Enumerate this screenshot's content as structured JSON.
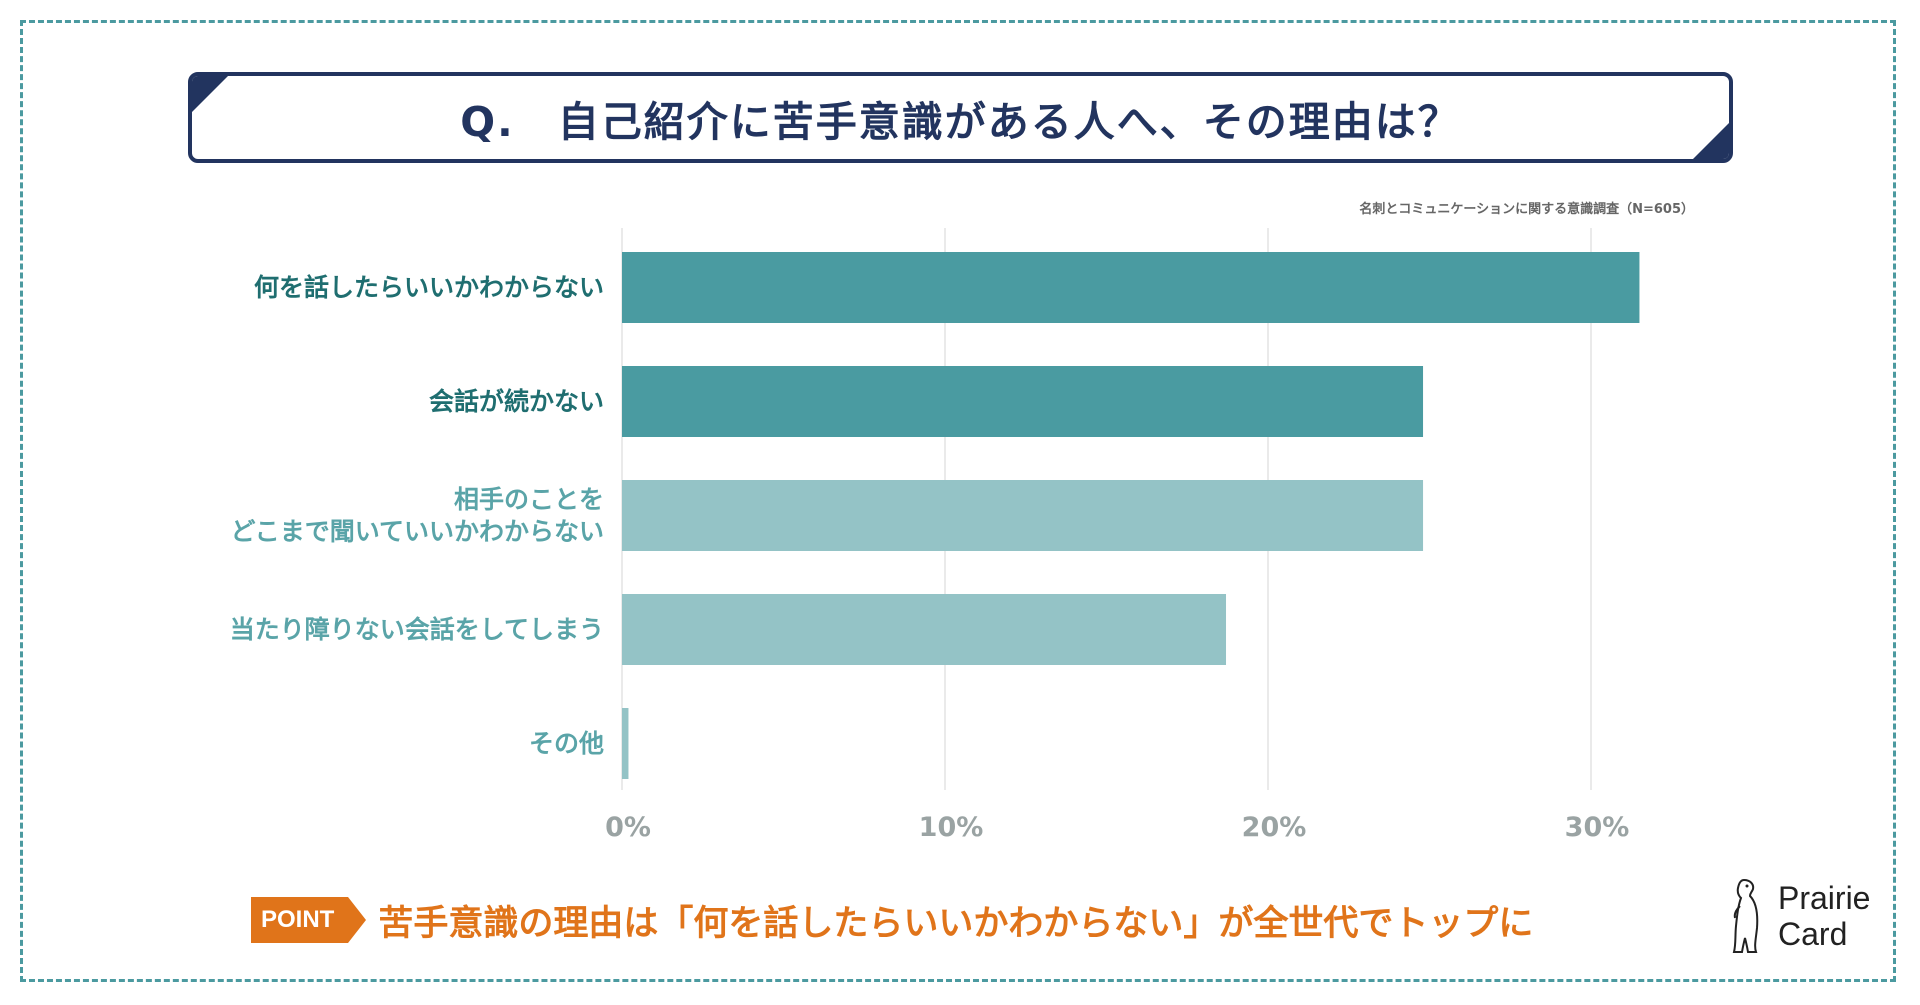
{
  "header": {
    "title": "Q.　自己紹介に苦手意識がある人へ、その理由は？",
    "source": "名刺とコミュニケーションに関する意識調査（N=605）"
  },
  "chart_data": {
    "type": "bar",
    "orientation": "horizontal",
    "categories": [
      "何を話したらいいかわからない",
      "会話が続かない",
      "相手のことを\nどこまで聞いていいかわからない",
      "当たり障りない会話をしてしまう",
      "その他"
    ],
    "values": [
      31.5,
      24.8,
      24.8,
      18.7,
      0.2
    ],
    "bar_colors": [
      "#4a9ba1",
      "#4a9ba1",
      "#94c3c6",
      "#94c3c6",
      "#94c3c6"
    ],
    "label_colors": [
      "#1f6e70",
      "#1f6e70",
      "#5aa4a8",
      "#5aa4a8",
      "#5aa4a8"
    ],
    "x_ticks": [
      "0%",
      "10%",
      "20%",
      "30%"
    ],
    "xlim": [
      0,
      34
    ],
    "grid": true,
    "title": "",
    "xlabel": "",
    "ylabel": ""
  },
  "point": {
    "badge": "POINT",
    "text": "苦手意識の理由は「何を話したらいいかわからない」が全世代でトップに"
  },
  "logo": {
    "line1": "Prairie",
    "line2": "Card",
    "icon": "meerkat-icon"
  },
  "colors": {
    "navy": "#22345f",
    "teal": "#4a9ba1",
    "light_teal": "#94c3c6",
    "orange": "#e0741a",
    "frame": "#4b9aa0"
  }
}
